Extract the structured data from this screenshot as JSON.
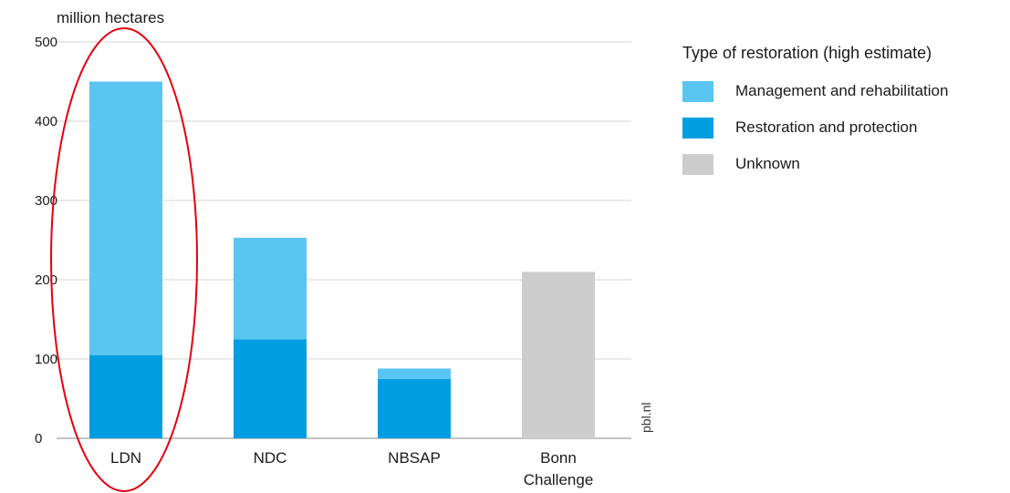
{
  "chart_data": {
    "type": "bar",
    "stacked": true,
    "unit_label": "million hectares",
    "categories": [
      "LDN",
      "NDC",
      "NBSAP",
      "Bonn Challenge"
    ],
    "category_lines": [
      [
        "LDN"
      ],
      [
        "NDC"
      ],
      [
        "NBSAP"
      ],
      [
        "Bonn",
        "Challenge"
      ]
    ],
    "series": [
      {
        "name": "Restoration and protection",
        "color": "#009ee0",
        "values": [
          105,
          125,
          75,
          0
        ]
      },
      {
        "name": "Management and rehabilitation",
        "color": "#5bc5f2",
        "values": [
          345,
          128,
          13,
          0
        ]
      },
      {
        "name": "Unknown",
        "color": "#cdcdcd",
        "values": [
          0,
          0,
          0,
          210
        ]
      }
    ],
    "ylim": [
      0,
      500
    ],
    "yticks": [
      0,
      100,
      200,
      300,
      400,
      500
    ],
    "grid": true,
    "source": "pbl.nl",
    "highlight": {
      "category": "LDN",
      "shape": "ellipse",
      "color": "#e3000f"
    }
  },
  "legend": {
    "title": "Type of restoration (high estimate)",
    "items": [
      {
        "label": "Management and rehabilitation",
        "color": "#5bc5f2"
      },
      {
        "label": "Restoration and protection",
        "color": "#009ee0"
      },
      {
        "label": "Unknown",
        "color": "#cdcdcd"
      }
    ]
  }
}
